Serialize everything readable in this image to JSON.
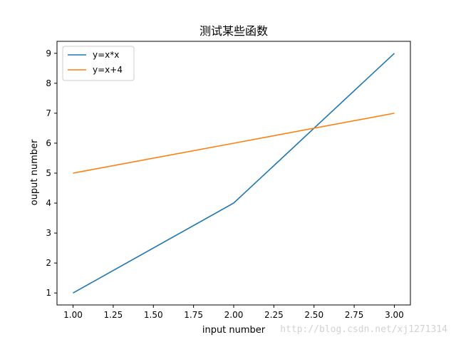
{
  "chart_data": {
    "type": "line",
    "title": "测试某些函数",
    "xlabel": "input number",
    "ylabel": "ouput number",
    "xlim": [
      0.9,
      3.1
    ],
    "ylim": [
      0.6,
      9.4
    ],
    "grid": false,
    "legend_position": "top-left",
    "x_ticks": [
      1.0,
      1.25,
      1.5,
      1.75,
      2.0,
      2.25,
      2.5,
      2.75,
      3.0
    ],
    "x_tick_labels": [
      "1.00",
      "1.25",
      "1.50",
      "1.75",
      "2.00",
      "2.25",
      "2.50",
      "2.75",
      "3.00"
    ],
    "y_ticks": [
      1,
      2,
      3,
      4,
      5,
      6,
      7,
      8,
      9
    ],
    "y_tick_labels": [
      "1",
      "2",
      "3",
      "4",
      "5",
      "6",
      "7",
      "8",
      "9"
    ],
    "series": [
      {
        "name": "y=x*x",
        "x": [
          1,
          2,
          3
        ],
        "values": [
          1,
          4,
          9
        ],
        "color": "#1f77b4"
      },
      {
        "name": "y=x+4",
        "x": [
          1,
          2,
          3
        ],
        "values": [
          5,
          6,
          7
        ],
        "color": "#ff7f0e"
      }
    ]
  },
  "watermark": "http://blog.csdn.net/xj1271314"
}
